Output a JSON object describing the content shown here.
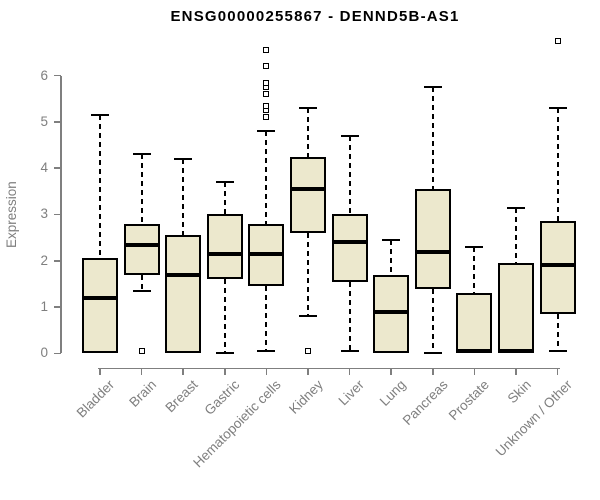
{
  "title": "ENSG00000255867 - DENND5B-AS1",
  "colors": {
    "box_fill": "#ECE8CD",
    "box_border": "#000000",
    "axis_gray": "#7F7F7F",
    "title_color": "#000000",
    "background": "#FFFFFF"
  },
  "chart_data": {
    "type": "boxplot",
    "title": "ENSG00000255867 - DENND5B-AS1",
    "xlabel": "",
    "ylabel": "Expression",
    "ylim": [
      0,
      6.9
    ],
    "yticks": [
      0,
      1,
      2,
      3,
      4,
      5,
      6
    ],
    "grid": false,
    "legend": false,
    "categories": [
      "Bladder",
      "Brain",
      "Breast",
      "Gastric",
      "Hematopoietic cells",
      "Kidney",
      "Liver",
      "Lung",
      "Pancreas",
      "Prostate",
      "Skin",
      "Unknown / Other"
    ],
    "series": [
      {
        "category": "Bladder",
        "whisker_low": 0,
        "q1": 0,
        "median": 1.2,
        "q3": 2.05,
        "whisker_high": 5.15,
        "outliers": []
      },
      {
        "category": "Brain",
        "whisker_low": 1.35,
        "q1": 1.7,
        "median": 2.35,
        "q3": 2.8,
        "whisker_high": 4.3,
        "outliers": [
          0.05
        ]
      },
      {
        "category": "Breast",
        "whisker_low": 0,
        "q1": 0,
        "median": 1.7,
        "q3": 2.55,
        "whisker_high": 4.2,
        "outliers": []
      },
      {
        "category": "Gastric",
        "whisker_low": 0,
        "q1": 1.6,
        "median": 2.15,
        "q3": 3.0,
        "whisker_high": 3.7,
        "outliers": []
      },
      {
        "category": "Hematopoietic cells",
        "whisker_low": 0.05,
        "q1": 1.45,
        "median": 2.15,
        "q3": 2.8,
        "whisker_high": 4.8,
        "outliers": [
          5.1,
          5.25,
          5.35,
          5.6,
          5.75,
          5.85,
          6.2,
          6.55
        ]
      },
      {
        "category": "Kidney",
        "whisker_low": 0.8,
        "q1": 2.6,
        "median": 3.55,
        "q3": 4.25,
        "whisker_high": 5.3,
        "outliers": [
          0.05
        ]
      },
      {
        "category": "Liver",
        "whisker_low": 0.05,
        "q1": 1.55,
        "median": 2.4,
        "q3": 3.0,
        "whisker_high": 4.7,
        "outliers": []
      },
      {
        "category": "Lung",
        "whisker_low": 0,
        "q1": 0,
        "median": 0.9,
        "q3": 1.7,
        "whisker_high": 2.45,
        "outliers": []
      },
      {
        "category": "Pancreas",
        "whisker_low": 0,
        "q1": 1.4,
        "median": 2.2,
        "q3": 3.55,
        "whisker_high": 5.75,
        "outliers": []
      },
      {
        "category": "Prostate",
        "whisker_low": 0,
        "q1": 0,
        "median": 0.05,
        "q3": 1.3,
        "whisker_high": 2.3,
        "outliers": []
      },
      {
        "category": "Skin",
        "whisker_low": 0,
        "q1": 0,
        "median": 0.05,
        "q3": 1.95,
        "whisker_high": 3.15,
        "outliers": []
      },
      {
        "category": "Unknown / Other",
        "whisker_low": 0.05,
        "q1": 0.85,
        "median": 1.9,
        "q3": 2.85,
        "whisker_high": 5.3,
        "outliers": [
          6.75
        ]
      }
    ]
  }
}
